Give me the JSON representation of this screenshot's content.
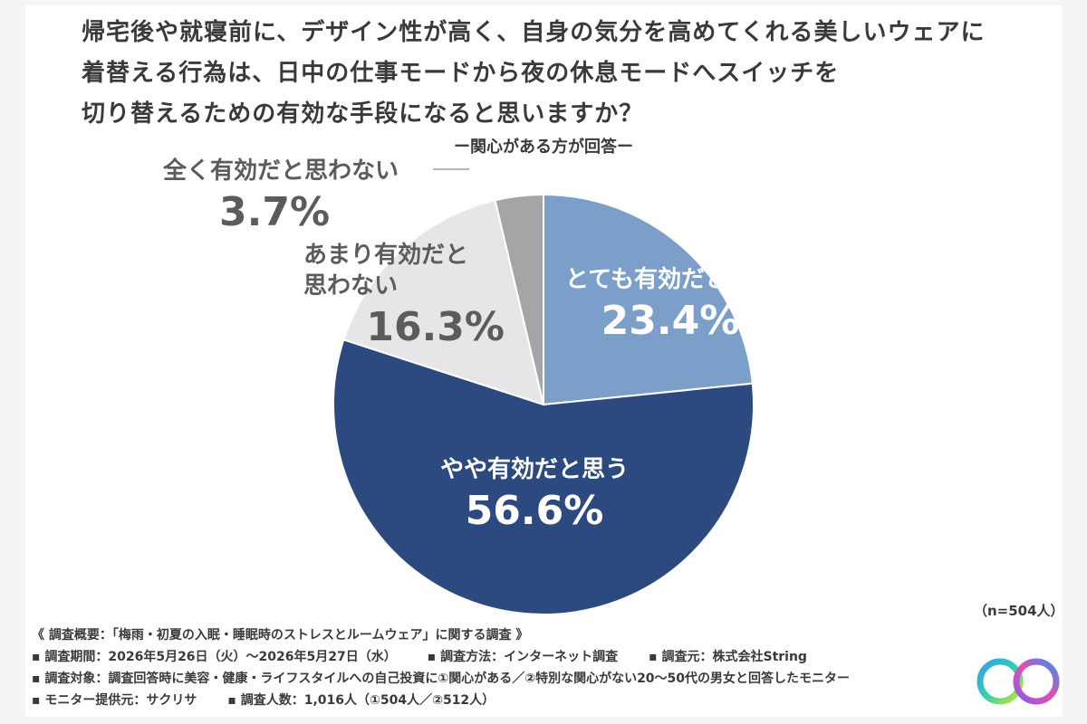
{
  "title_lines": [
    "帰宅後や就寝前に、デザイン性が高く、自身の気分を高めてくれる美しいウェアに",
    "着替える行為は、日中の仕事モードから夜の休息モードへスイッチを",
    "切り替えるための有効な手段になると思いますか？"
  ],
  "subtitle": "ー関心がある方が回答ー",
  "chart_data": {
    "type": "pie",
    "start_angle_deg": 0,
    "direction": "clockwise",
    "slices": [
      {
        "label": "とても有効だと思う",
        "value": 23.4,
        "display": "23.4%",
        "color": "#7b9fc8"
      },
      {
        "label": "やや有効だと思う",
        "value": 56.6,
        "display": "56.6%",
        "color": "#2d4a80"
      },
      {
        "label": "あまり有効だと思わない",
        "label_lines": [
          "あまり有効だと",
          "思わない"
        ],
        "value": 16.3,
        "display": "16.3%",
        "color": "#e6e6e8"
      },
      {
        "label": "全く有効だと思わない",
        "value": 3.7,
        "display": "3.7%",
        "color": "#a5a5a7"
      }
    ]
  },
  "sample_size": "（n=504人）",
  "notes": {
    "overview": "《 調査概要：「梅雨・初夏の入眠・睡眠時のストレスとルームウェア」に関する調査 》",
    "period": "▪ 調査期間：2026年5月26日（火）〜2026年5月27日（水）",
    "method": "▪ 調査方法：インターネット調査",
    "sponsor": "▪ 調査元：株式会社String",
    "target": "▪ 調査対象：調査回答時に美容・健康・ライフスタイルへの自己投資に①関心がある／②特別な関心がない20〜50代の男女と回答したモニター",
    "provider": "▪ モニター提供元：サクリサ",
    "count": "▪ 調査人数：1,016人（①504人／②512人）"
  },
  "logo_icon": "infinity-ring-logo",
  "colors": {
    "card": "#ffffff",
    "background": "#f4f4f4",
    "text": "#3a3a3a"
  }
}
